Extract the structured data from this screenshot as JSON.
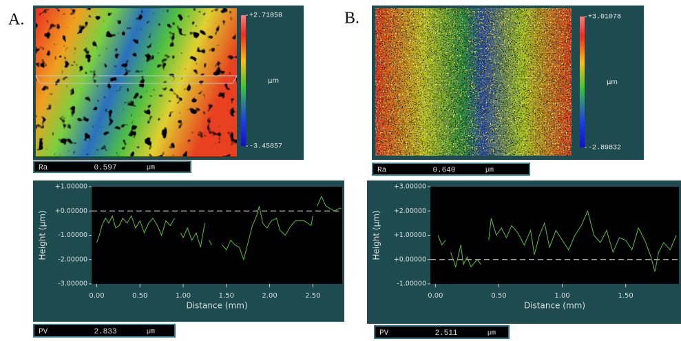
{
  "chart_data": [
    {
      "type": "line",
      "panel_label": "A.",
      "colorbar": {
        "max": {
          "value": 2.71858,
          "label": "+2.71858"
        },
        "min": {
          "value": -3.45857,
          "label": "-3.45857"
        },
        "unit": "µm"
      },
      "ra": {
        "name": "Ra",
        "value": "0.597",
        "unit": "µm"
      },
      "pv": {
        "name": "PV",
        "value": "2.833",
        "unit": "µm"
      },
      "y_label": "Height (µm)",
      "x_label": "Distance (mm)",
      "ylim": [
        -3,
        1
      ],
      "yticks": [
        {
          "value": 1,
          "label": "+1.00000"
        },
        {
          "value": 0,
          "label": "+0.00000"
        },
        {
          "value": -1,
          "label": "-1.00000"
        },
        {
          "value": -2,
          "label": "-2.00000"
        },
        {
          "value": -3,
          "label": "-3.00000"
        }
      ],
      "xlim": [
        -0.06,
        2.84
      ],
      "xticks": [
        {
          "value": 0,
          "label": "0.00"
        },
        {
          "value": 0.5,
          "label": "0.50"
        },
        {
          "value": 1,
          "label": "1.00"
        },
        {
          "value": 1.5,
          "label": "1.50"
        },
        {
          "value": 2,
          "label": "2.00"
        },
        {
          "value": 2.5,
          "label": "2.50"
        }
      ],
      "reference_line": 0,
      "color": "#5fbf3f",
      "x": [
        0.0,
        0.03,
        0.06,
        0.1,
        0.14,
        0.18,
        0.22,
        0.26,
        0.3,
        0.35,
        0.4,
        0.45,
        0.5,
        0.55,
        0.6,
        0.65,
        0.7,
        0.75,
        0.8,
        0.85,
        0.9,
        0.93,
        0.97,
        1.0,
        1.05,
        1.1,
        1.15,
        1.2,
        1.25,
        1.27,
        1.3,
        1.33,
        1.4,
        1.45,
        1.5,
        1.55,
        1.6,
        1.65,
        1.7,
        1.75,
        1.8,
        1.85,
        1.88,
        1.92,
        1.97,
        2.02,
        2.08,
        2.12,
        2.18,
        2.25,
        2.3,
        2.4,
        2.48,
        2.5,
        2.52,
        2.55,
        2.6,
        2.65,
        2.7,
        2.75,
        2.8,
        2.83
      ],
      "values": [
        -1.3,
        -1.0,
        -0.6,
        -0.3,
        -0.5,
        -0.2,
        -0.7,
        -0.6,
        -0.3,
        -0.5,
        -0.2,
        -0.7,
        -0.4,
        -0.9,
        -0.5,
        -0.3,
        -0.6,
        -1.0,
        -0.4,
        -0.6,
        -0.3,
        null,
        -0.9,
        -1.1,
        -0.7,
        -1.2,
        -0.9,
        -1.5,
        -0.5,
        null,
        -1.2,
        -1.4,
        null,
        -1.4,
        -1.6,
        -1.2,
        -1.4,
        -1.5,
        -2.0,
        -1.3,
        -0.6,
        -0.2,
        0.2,
        -0.5,
        -0.7,
        -0.4,
        -0.3,
        -0.8,
        -1.0,
        -0.6,
        -0.4,
        -0.4,
        -0.6,
        -0.2,
        null,
        0.2,
        0.6,
        0.2,
        0.1,
        0.0,
        0.1,
        0.1
      ]
    },
    {
      "type": "line",
      "panel_label": "B.",
      "colorbar": {
        "max": {
          "value": 3.01078,
          "label": "+3.01078"
        },
        "min": {
          "value": -2.89832,
          "label": "-2.89832"
        },
        "unit": "µm"
      },
      "ra": {
        "name": "Ra",
        "value": "0.640",
        "unit": "µm"
      },
      "pv": {
        "name": "PV",
        "value": "2.511",
        "unit": "µm"
      },
      "y_label": "Height (µm)",
      "x_label": "Distance (mm)",
      "ylim": [
        -1,
        3
      ],
      "yticks": [
        {
          "value": 3,
          "label": "+3.00000"
        },
        {
          "value": 2,
          "label": "+2.00000"
        },
        {
          "value": 1,
          "label": "+1.00000"
        },
        {
          "value": 0,
          "label": "+0.00000"
        },
        {
          "value": -1,
          "label": "-1.00000"
        }
      ],
      "xlim": [
        -0.04,
        1.92
      ],
      "xticks": [
        {
          "value": 0,
          "label": "0.00"
        },
        {
          "value": 0.5,
          "label": "0.50"
        },
        {
          "value": 1,
          "label": "1.00"
        },
        {
          "value": 1.5,
          "label": "1.50"
        }
      ],
      "reference_line": 0,
      "color": "#5fbf3f",
      "x": [
        0.02,
        0.05,
        0.08,
        0.1,
        0.12,
        0.14,
        0.16,
        0.2,
        0.22,
        0.25,
        0.28,
        0.33,
        0.36,
        0.39,
        0.42,
        0.44,
        0.48,
        0.52,
        0.56,
        0.6,
        0.65,
        0.7,
        0.75,
        0.78,
        0.82,
        0.86,
        0.9,
        0.95,
        1.0,
        1.05,
        1.1,
        1.15,
        1.2,
        1.25,
        1.3,
        1.35,
        1.4,
        1.45,
        1.5,
        1.55,
        1.6,
        1.65,
        1.7,
        1.73,
        1.76,
        1.8,
        1.85,
        1.9
      ],
      "values": [
        1.0,
        0.6,
        0.8,
        null,
        0.3,
        0.0,
        -0.3,
        0.6,
        -0.2,
        0.1,
        -0.3,
        0.0,
        -0.2,
        null,
        0.8,
        1.7,
        1.0,
        1.3,
        0.9,
        1.4,
        1.1,
        0.6,
        1.2,
        0.2,
        1.0,
        1.5,
        0.5,
        1.2,
        0.8,
        0.4,
        1.0,
        1.4,
        2.0,
        1.0,
        0.7,
        1.2,
        0.3,
        0.9,
        0.8,
        0.4,
        1.3,
        0.8,
        0.1,
        -0.5,
        0.3,
        0.7,
        0.4,
        1.0
      ]
    }
  ]
}
